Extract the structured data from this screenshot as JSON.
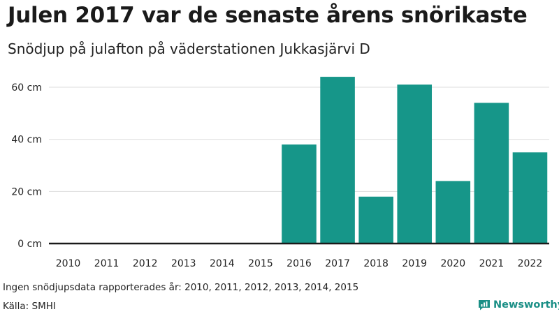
{
  "title": "Julen 2017 var de senaste årens snörikaste",
  "subtitle": "Snödjup på julafton på väderstationen Jukkasjärvi D",
  "footer": {
    "note": "Ingen snödjupsdata rapporterades år: 2010, 2011, 2012, 2013, 2014, 2015",
    "source": "Källa: SMHI",
    "brand": "Newsworthy"
  },
  "colors": {
    "bar": "#169689",
    "grid": "#dddddd",
    "axis": "#1a1a1a",
    "brand": "#1a8f86"
  },
  "chart_data": {
    "type": "bar",
    "categories": [
      "2010",
      "2011",
      "2012",
      "2013",
      "2014",
      "2015",
      "2016",
      "2017",
      "2018",
      "2019",
      "2020",
      "2021",
      "2022"
    ],
    "values": [
      null,
      null,
      null,
      null,
      null,
      null,
      38,
      64,
      18,
      61,
      24,
      54,
      35
    ],
    "ylim": [
      0,
      64
    ],
    "yticks": [
      0,
      20,
      40,
      60
    ],
    "ytick_labels": [
      "0 cm",
      "20 cm",
      "40 cm",
      "60 cm"
    ],
    "grid": true
  }
}
